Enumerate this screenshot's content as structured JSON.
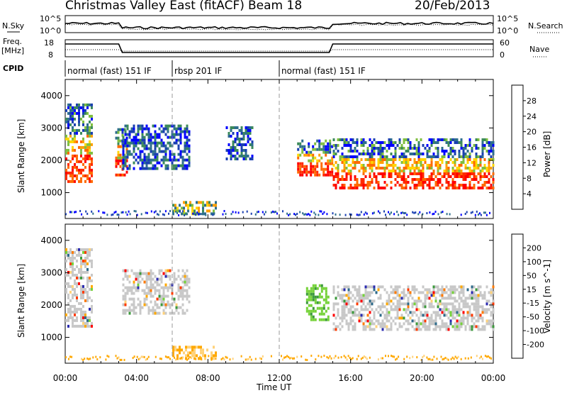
{
  "header": {
    "title": "Christmas Valley East (fitACF)",
    "beam": "Beam 18",
    "date": "20/Feb/2013"
  },
  "panels": {
    "nsky_label": "N.Sky",
    "nsearch_label": "N.Search",
    "freq_label_line1": "Freq.",
    "freq_label_line2": "[MHz]",
    "nave_label": "Nave",
    "cpid_label": "CPID",
    "nsky_ticks": [
      "10^5",
      "10^0"
    ],
    "nsearch_ticks": [
      "10^5",
      "10^0"
    ],
    "freq_ticks": [
      "18",
      "8"
    ],
    "nave_ticks": [
      "60",
      "0"
    ]
  },
  "cpid_segments": [
    {
      "label": "normal (fast) 151 IF",
      "start": 0,
      "end": 6
    },
    {
      "label": "rbsp 201 IF",
      "start": 6,
      "end": 12
    },
    {
      "label": "normal (fast) 151 IF",
      "start": 12,
      "end": 24
    }
  ],
  "colors": {
    "power": [
      "#0000ff",
      "#1a3fb0",
      "#2e6e8e",
      "#3c8a5a",
      "#7fbf3f",
      "#ffd700",
      "#ff9f00",
      "#ff6a00",
      "#ff2a00",
      "#ff0000"
    ],
    "velocity": [
      "#2a2ab0",
      "#2d6a8a",
      "#3c9a3c",
      "#76d23a",
      "#c8c8c8",
      "#ffd27a",
      "#ffa800",
      "#ff7a00",
      "#ff3a00",
      "#ff0000"
    ]
  },
  "chart_data": [
    {
      "type": "heatmap",
      "title": "Power",
      "xlabel": "Time UT",
      "ylabel": "Slant Range [km]",
      "xlim": [
        0,
        24
      ],
      "ylim": [
        200,
        4500
      ],
      "x_ticks": [
        "00:00",
        "04:00",
        "08:00",
        "12:00",
        "16:00",
        "20:00",
        "00:00"
      ],
      "y_ticks": [
        "1000",
        "2000",
        "3000",
        "4000"
      ],
      "colorbar_label": "Power [dB]",
      "colorbar_ticks": [
        "28",
        "24",
        "20",
        "16",
        "12",
        "8",
        "4"
      ],
      "regions": [
        {
          "t0": 0.0,
          "t1": 1.5,
          "r0": 1300,
          "r1": 3700,
          "level": "high"
        },
        {
          "t0": 2.8,
          "t1": 3.4,
          "r0": 1500,
          "r1": 3000,
          "level": "high"
        },
        {
          "t0": 3.2,
          "t1": 7.0,
          "r0": 1700,
          "r1": 3100,
          "level": "low"
        },
        {
          "t0": 6.0,
          "t1": 8.5,
          "r0": 300,
          "r1": 700,
          "level": "mid"
        },
        {
          "t0": 9.0,
          "t1": 10.5,
          "r0": 2000,
          "r1": 3000,
          "level": "low"
        },
        {
          "t0": 13.0,
          "t1": 15.0,
          "r0": 1500,
          "r1": 2600,
          "level": "high"
        },
        {
          "t0": 15.0,
          "t1": 24.0,
          "r0": 1100,
          "r1": 2600,
          "level": "high"
        }
      ]
    },
    {
      "type": "heatmap",
      "title": "Velocity",
      "xlabel": "Time UT",
      "ylabel": "Slant Range [km]",
      "xlim": [
        0,
        24
      ],
      "ylim": [
        200,
        4500
      ],
      "x_ticks": [
        "00:00",
        "04:00",
        "08:00",
        "12:00",
        "16:00",
        "20:00",
        "00:00"
      ],
      "y_ticks": [
        "1000",
        "2000",
        "3000",
        "4000"
      ],
      "colorbar_label": "Velocity [m s^-1]",
      "colorbar_ticks": [
        "200",
        "100",
        "50",
        "15",
        "-15",
        "-50",
        "-100",
        "-200"
      ],
      "regions": [
        {
          "t0": 0.0,
          "t1": 1.5,
          "r0": 1300,
          "r1": 3700,
          "level": "grey"
        },
        {
          "t0": 3.2,
          "t1": 7.0,
          "r0": 1700,
          "r1": 3100,
          "level": "grey"
        },
        {
          "t0": 6.0,
          "t1": 8.5,
          "r0": 300,
          "r1": 700,
          "level": "orange"
        },
        {
          "t0": 13.5,
          "t1": 14.8,
          "r0": 1500,
          "r1": 2600,
          "level": "green"
        },
        {
          "t0": 15.0,
          "t1": 24.0,
          "r0": 1200,
          "r1": 2600,
          "level": "grey"
        }
      ]
    }
  ]
}
